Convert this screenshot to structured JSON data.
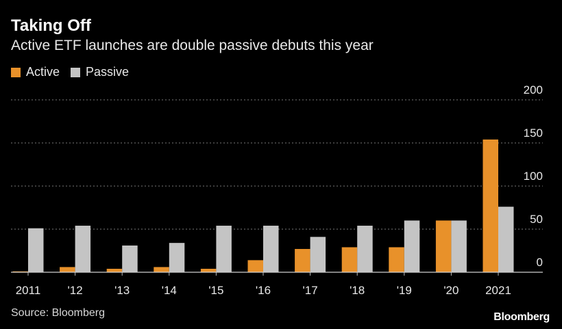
{
  "header": {
    "title": "Taking Off",
    "subtitle": "Active ETF launches are double passive debuts this year"
  },
  "footer": {
    "source": "Source: Bloomberg",
    "brand": "Bloomberg"
  },
  "colors": {
    "active": "#e8912a",
    "passive": "#c4c4c4",
    "grid": "#7a7a7a",
    "text": "#e8e8e8"
  },
  "chart_data": {
    "type": "bar",
    "title": "Taking Off",
    "subtitle": "Active ETF launches are double passive debuts this year",
    "categories": [
      "2011",
      "'12",
      "'13",
      "'14",
      "'15",
      "'16",
      "'17",
      "'18",
      "'19",
      "'20",
      "2021"
    ],
    "series": [
      {
        "name": "Active",
        "values": [
          1,
          6,
          4,
          6,
          4,
          14,
          27,
          29,
          29,
          60,
          154
        ]
      },
      {
        "name": "Passive",
        "values": [
          51,
          54,
          31,
          34,
          54,
          54,
          41,
          54,
          60,
          60,
          76
        ]
      }
    ],
    "ylim": [
      0,
      200
    ],
    "yticks": [
      0,
      50,
      100,
      150,
      200
    ],
    "xlabel": "",
    "ylabel": "",
    "grid": true,
    "legend_position": "top-left",
    "y_axis_side": "right"
  }
}
